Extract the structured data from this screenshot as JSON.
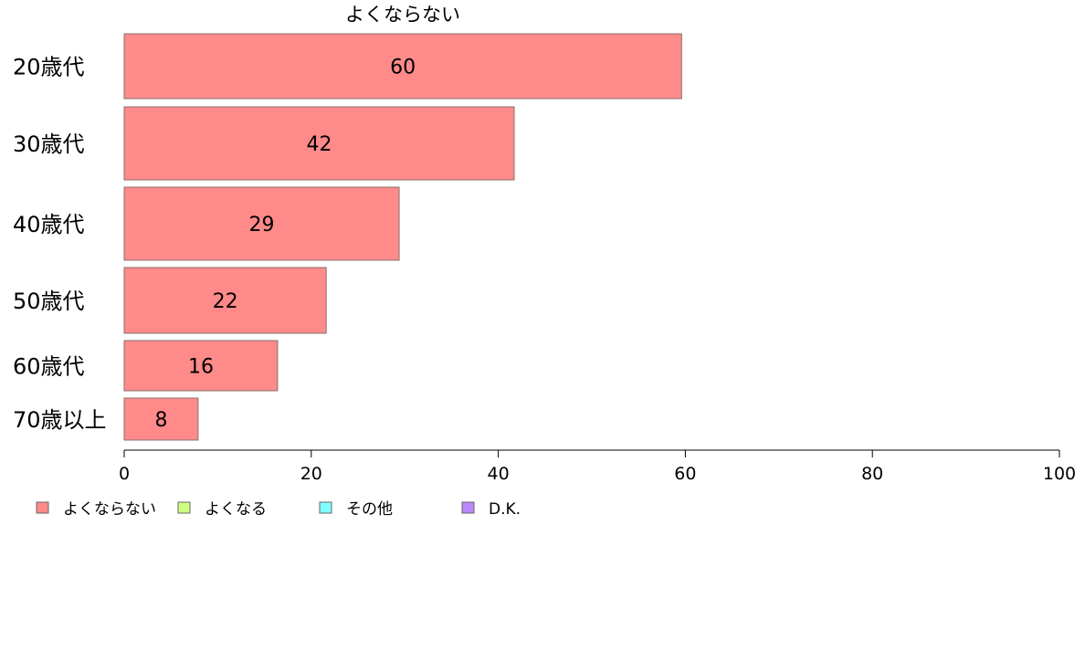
{
  "chart_data": {
    "type": "bar",
    "orientation": "horizontal",
    "title": "よくならない",
    "categories": [
      "20歳代",
      "30歳代",
      "40歳代",
      "50歳代",
      "60歳代",
      "70歳以上"
    ],
    "series": [
      {
        "name": "よくならない",
        "color": "#ff8a8a",
        "values": [
          59.6,
          41.7,
          29.4,
          21.6,
          16.4,
          7.9
        ]
      }
    ],
    "data_labels": [
      "60",
      "42",
      "29",
      "22",
      "16",
      "8"
    ],
    "xlim": [
      0,
      100
    ],
    "xticks": [
      0,
      20,
      40,
      60,
      80,
      100
    ],
    "grid": false,
    "legend": {
      "position": "bottom-left",
      "items": [
        {
          "label": "よくならない",
          "color": "#ff8a8a"
        },
        {
          "label": "よくなる",
          "color": "#ccff80"
        },
        {
          "label": "その他",
          "color": "#80ffff"
        },
        {
          "label": "D.K.",
          "color": "#bb88ff"
        }
      ]
    }
  }
}
